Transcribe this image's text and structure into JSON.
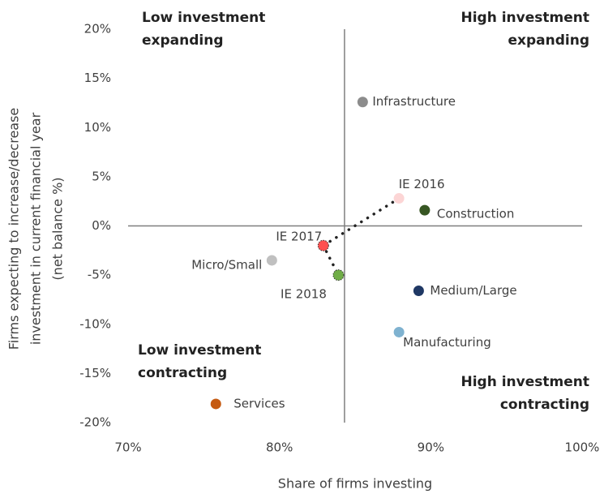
{
  "chart_data": {
    "type": "scatter",
    "x_label": "Share of firms investing",
    "y_label": [
      "Firms expecting to increase/decrease",
      "investment in current financial year",
      "(net balance %)"
    ],
    "xlim": [
      70,
      100
    ],
    "ylim": [
      -20,
      20
    ],
    "xticks": [
      {
        "value": 70,
        "label": "70%"
      },
      {
        "value": 80,
        "label": "80%"
      },
      {
        "value": 90,
        "label": "90%"
      },
      {
        "value": 100,
        "label": "100%"
      }
    ],
    "yticks": [
      {
        "value": 20,
        "label": "20%"
      },
      {
        "value": 15,
        "label": "15%"
      },
      {
        "value": 10,
        "label": "10%"
      },
      {
        "value": 5,
        "label": "5%"
      },
      {
        "value": 0,
        "label": "0%"
      },
      {
        "value": -5,
        "label": "-5%"
      },
      {
        "value": -10,
        "label": "-10%"
      },
      {
        "value": -15,
        "label": "-15%"
      },
      {
        "value": -20,
        "label": "-20%"
      }
    ],
    "y_axis_at": 84.3,
    "x_axis_at": 0,
    "points": [
      {
        "label": "Infrastructure",
        "x": 85.5,
        "y": 12.6,
        "color": "#8c8c8c"
      },
      {
        "label": "IE 2016",
        "x": 87.9,
        "y": 2.8,
        "color": "#fcd5d5"
      },
      {
        "label": "Construction",
        "x": 89.6,
        "y": 1.6,
        "color": "#375623"
      },
      {
        "label": "IE 2017",
        "x": 82.9,
        "y": -2,
        "color": "#ff5050"
      },
      {
        "label": "Micro/Small",
        "x": 79.5,
        "y": -3.5,
        "color": "#c0c0c0"
      },
      {
        "label": "IE 2018",
        "x": 83.9,
        "y": -5,
        "color": "#70ad47"
      },
      {
        "label": "Medium/Large",
        "x": 89.2,
        "y": -6.6,
        "color": "#1f3864"
      },
      {
        "label": "Manufacturing",
        "x": 87.9,
        "y": -10.8,
        "color": "#7fb2d0"
      },
      {
        "label": "Services",
        "x": 75.8,
        "y": -18.1,
        "color": "#c55a11"
      }
    ],
    "trail": [
      1,
      3,
      5
    ],
    "annotations": [
      {
        "lines": [
          "Low investment",
          "expanding"
        ]
      },
      {
        "lines": [
          "High investment",
          "expanding"
        ]
      },
      {
        "lines": [
          "Low investment",
          "contracting"
        ]
      },
      {
        "lines": [
          "High investment",
          "contracting"
        ]
      }
    ]
  }
}
